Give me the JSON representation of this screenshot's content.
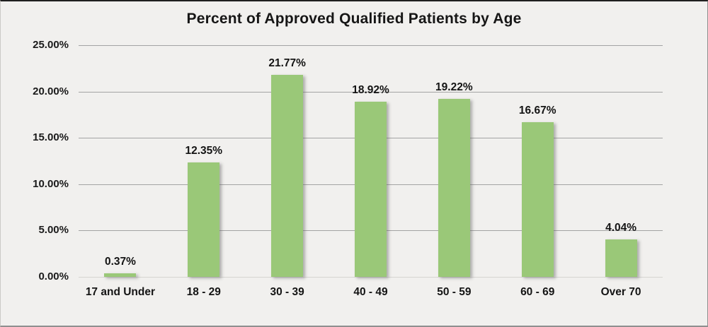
{
  "chart_data": {
    "type": "bar",
    "title": "Percent of Approved Qualified Patients by Age",
    "categories": [
      "17 and Under",
      "18 - 29",
      "30 - 39",
      "40 - 49",
      "50 - 59",
      "60 - 69",
      "Over 70"
    ],
    "values": [
      0.37,
      12.35,
      21.77,
      18.92,
      19.22,
      16.67,
      4.04
    ],
    "value_labels": [
      "0.37%",
      "12.35%",
      "21.77%",
      "18.92%",
      "19.22%",
      "16.67%",
      "4.04%"
    ],
    "y_ticks": [
      {
        "value": 25,
        "label": "25.00%"
      },
      {
        "value": 20,
        "label": "20.00%"
      },
      {
        "value": 15,
        "label": "15.00%"
      },
      {
        "value": 10,
        "label": "10.00%"
      },
      {
        "value": 5,
        "label": "5.00%"
      },
      {
        "value": 0,
        "label": "0.00%"
      }
    ],
    "ylim": [
      0,
      25
    ],
    "xlabel": "",
    "ylabel": "",
    "grid": true,
    "legend": "none",
    "bar_color": "#9AC878",
    "background_color": "#F1F0EE",
    "text_color": "#1a1a1a"
  }
}
